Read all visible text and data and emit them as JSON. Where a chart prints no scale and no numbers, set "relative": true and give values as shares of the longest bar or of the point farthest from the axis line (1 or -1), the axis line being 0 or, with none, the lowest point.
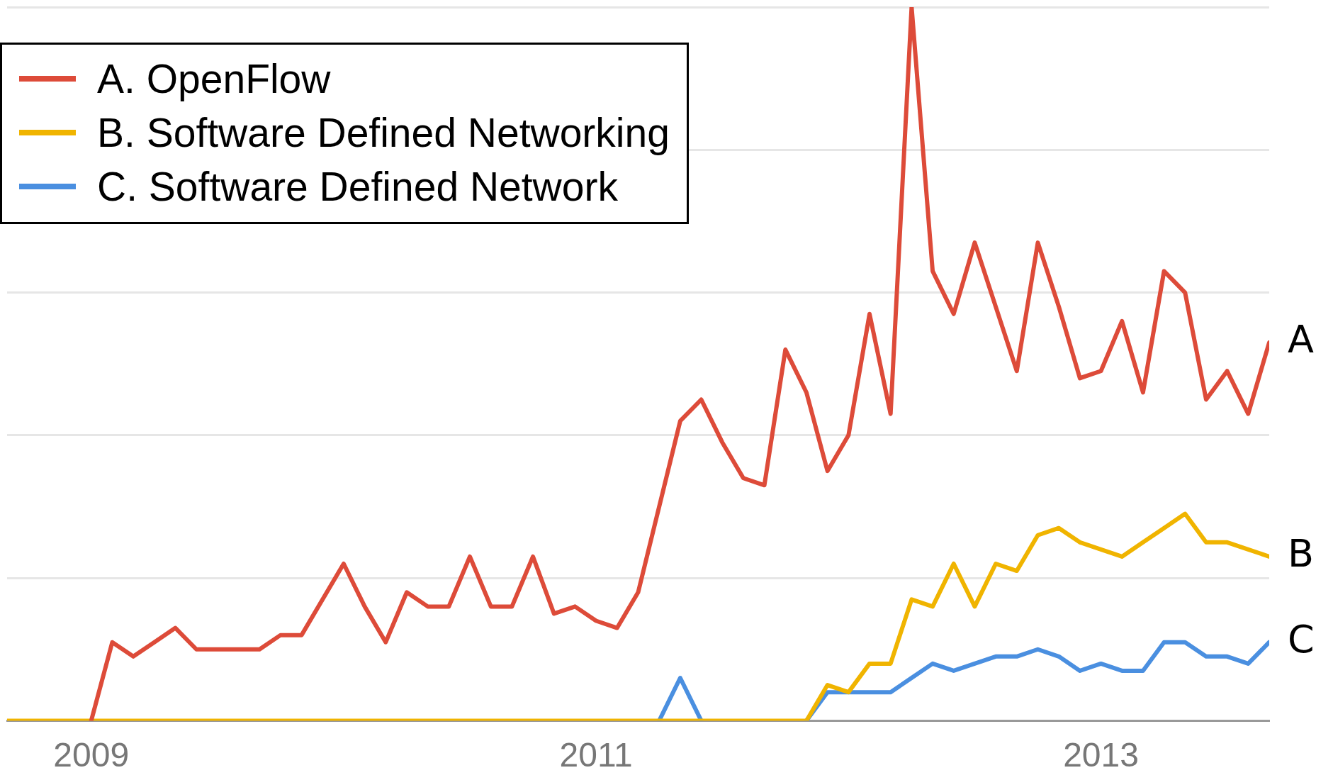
{
  "chart_data": {
    "type": "line",
    "relative": true,
    "x": [
      "2008-09",
      "2008-10",
      "2008-11",
      "2008-12",
      "2009-01",
      "2009-02",
      "2009-03",
      "2009-04",
      "2009-05",
      "2009-06",
      "2009-07",
      "2009-08",
      "2009-09",
      "2009-10",
      "2009-11",
      "2009-12",
      "2010-01",
      "2010-02",
      "2010-03",
      "2010-04",
      "2010-05",
      "2010-06",
      "2010-07",
      "2010-08",
      "2010-09",
      "2010-10",
      "2010-11",
      "2010-12",
      "2011-01",
      "2011-02",
      "2011-03",
      "2011-04",
      "2011-05",
      "2011-06",
      "2011-07",
      "2011-08",
      "2011-09",
      "2011-10",
      "2011-11",
      "2011-12",
      "2012-01",
      "2012-02",
      "2012-03",
      "2012-04",
      "2012-05",
      "2012-06",
      "2012-07",
      "2012-08",
      "2012-09",
      "2012-10",
      "2012-11",
      "2012-12",
      "2013-01",
      "2013-02",
      "2013-03",
      "2013-04",
      "2013-05",
      "2013-06",
      "2013-07",
      "2013-08",
      "2013-09"
    ],
    "xlim": [
      "2008-09",
      "2013-09"
    ],
    "xticks": [
      {
        "value": "2009-01",
        "label": "2009"
      },
      {
        "value": "2011-01",
        "label": "2011"
      },
      {
        "value": "2013-01",
        "label": "2013"
      }
    ],
    "series": [
      {
        "name": "A. OpenFlow",
        "color": "#dd4b39",
        "values": [
          null,
          null,
          null,
          null,
          0,
          0.11,
          0.09,
          0.11,
          0.13,
          0.1,
          0.1,
          0.1,
          0.1,
          0.12,
          0.12,
          0.17,
          0.22,
          0.16,
          0.11,
          0.18,
          0.16,
          0.16,
          0.23,
          0.16,
          0.16,
          0.23,
          0.15,
          0.16,
          0.14,
          0.13,
          0.18,
          0.3,
          0.42,
          0.45,
          0.39,
          0.34,
          0.33,
          0.52,
          0.46,
          0.35,
          0.4,
          0.57,
          0.43,
          1.0,
          0.63,
          0.57,
          0.67,
          0.58,
          0.49,
          0.67,
          0.58,
          0.48,
          0.49,
          0.56,
          0.46,
          0.63,
          0.6,
          0.45,
          0.49,
          0.43,
          0.53
        ]
      },
      {
        "name": "B. Software Defined Networking",
        "color": "#f0b400",
        "values": [
          0,
          0,
          0,
          0,
          0,
          0,
          0,
          0,
          0,
          0,
          0,
          0,
          0,
          0,
          0,
          0,
          0,
          0,
          0,
          0,
          0,
          0,
          0,
          0,
          0,
          0,
          0,
          0,
          0,
          0,
          0,
          0,
          0,
          0,
          0,
          0,
          0,
          0,
          0,
          0.05,
          0.04,
          0.08,
          0.08,
          0.17,
          0.16,
          0.22,
          0.16,
          0.22,
          0.21,
          0.26,
          0.27,
          0.25,
          0.24,
          0.23,
          0.25,
          0.27,
          0.29,
          0.25,
          0.25,
          0.24,
          0.23
        ]
      },
      {
        "name": "C. Software Defined Network",
        "color": "#4a8fe0",
        "values": [
          null,
          null,
          null,
          null,
          null,
          null,
          null,
          null,
          null,
          null,
          null,
          null,
          null,
          null,
          null,
          null,
          null,
          null,
          null,
          null,
          null,
          null,
          null,
          null,
          null,
          null,
          null,
          null,
          null,
          null,
          null,
          0,
          0.06,
          0,
          null,
          null,
          null,
          null,
          0,
          0.04,
          0.04,
          0.04,
          0.04,
          0.06,
          0.08,
          0.07,
          0.08,
          0.09,
          0.09,
          0.1,
          0.09,
          0.07,
          0.08,
          0.07,
          0.07,
          0.11,
          0.11,
          0.09,
          0.09,
          0.08,
          0.11
        ]
      }
    ],
    "annotations": [
      {
        "text": "A",
        "x": "2013-09",
        "y": 0.53
      },
      {
        "text": "B",
        "x": "2013-09",
        "y": 0.23
      },
      {
        "text": "C",
        "x": "2013-09",
        "y": 0.11
      }
    ],
    "grid": "y",
    "legend": "top left",
    "marker": "none",
    "line_style": "solid"
  }
}
